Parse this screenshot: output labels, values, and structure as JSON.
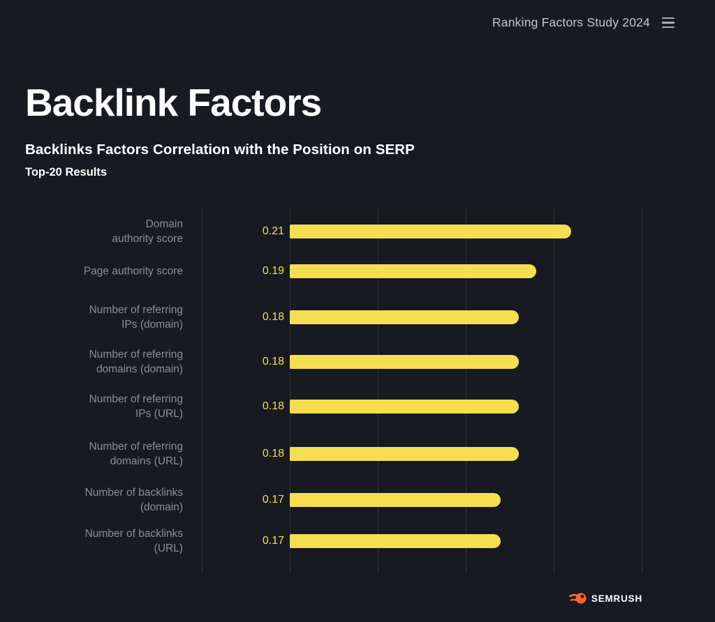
{
  "header": {
    "study_label": "Ranking Factors Study 2024",
    "menu_icon": "hamburger-icon"
  },
  "footer": {
    "brand": "SEMRUSH",
    "logo_icon": "semrush-flame-icon"
  },
  "colors": {
    "background": "#171A21",
    "bar": "#F6DE50",
    "value_label": "#F6DE50",
    "category_label": "#8A8E99",
    "gridline": "#2F333B",
    "header_text": "#C3C7CD",
    "title_text": "#FFFFFF",
    "logo_orange": "#FF642D"
  },
  "chart_data": {
    "type": "bar",
    "orientation": "horizontal",
    "title": "Backlink Factors",
    "subtitle": "Backlinks Factors Correlation with the Position on SERP",
    "note": "Top-20 Results",
    "categories": [
      "Domain authority score",
      "Page authority score",
      "Number of referring IPs (domain)",
      "Number of referring domains (domain)",
      "Number of referring IPs (URL)",
      "Number of referring domains (URL)",
      "Number of backlinks (domain)",
      "Number of backlinks (URL)"
    ],
    "category_lines": [
      [
        "Domain",
        "authority score"
      ],
      [
        "Page authority score"
      ],
      [
        "Number of referring",
        "IPs (domain)"
      ],
      [
        "Number of referring",
        "domains (domain)"
      ],
      [
        "Number of referring",
        "IPs (URL)"
      ],
      [
        "Number of referring",
        "domains (URL)"
      ],
      [
        "Number of backlinks",
        "(domain)"
      ],
      [
        "Number of backlinks",
        "(URL)"
      ]
    ],
    "values": [
      0.21,
      0.19,
      0.18,
      0.18,
      0.18,
      0.18,
      0.17,
      0.17
    ],
    "value_labels": [
      "0.21",
      "0.19",
      "0.18",
      "0.18",
      "0.18",
      "0.18",
      "0.17",
      "0.17"
    ],
    "xlim": [
      0,
      0.25
    ],
    "gridline_values": [
      0,
      0.05,
      0.1,
      0.15,
      0.2,
      0.25
    ],
    "tick_labels_shown": false,
    "grid": true,
    "legend": false,
    "bar_color": "#F6DE50",
    "value_label_position": "left-of-bar"
  }
}
